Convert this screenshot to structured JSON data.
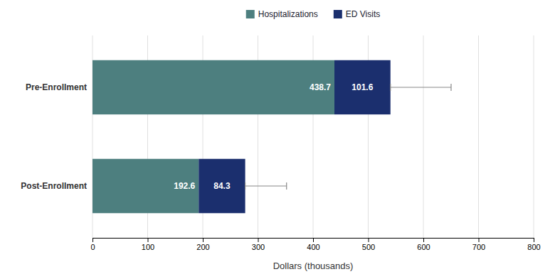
{
  "chart_data": {
    "type": "bar",
    "orientation": "horizontal",
    "stacked": true,
    "categories": [
      "Pre-Enrollment",
      "Post-Enrollment"
    ],
    "series": [
      {
        "name": "Hospitalizations",
        "color": "#4d7f7f",
        "values": [
          438.7,
          192.6
        ]
      },
      {
        "name": "ED Visits",
        "color": "#1b2f6e",
        "values": [
          101.6,
          84.3
        ]
      }
    ],
    "totals": [
      540.3,
      276.9
    ],
    "errors": [
      110,
      75
    ],
    "xlabel": "Dollars (thousands)",
    "xlim": [
      0,
      800
    ],
    "xticks": [
      0,
      100,
      200,
      300,
      400,
      500,
      600,
      700,
      800
    ],
    "grid": true,
    "legend": "top",
    "data_labels": true
  }
}
